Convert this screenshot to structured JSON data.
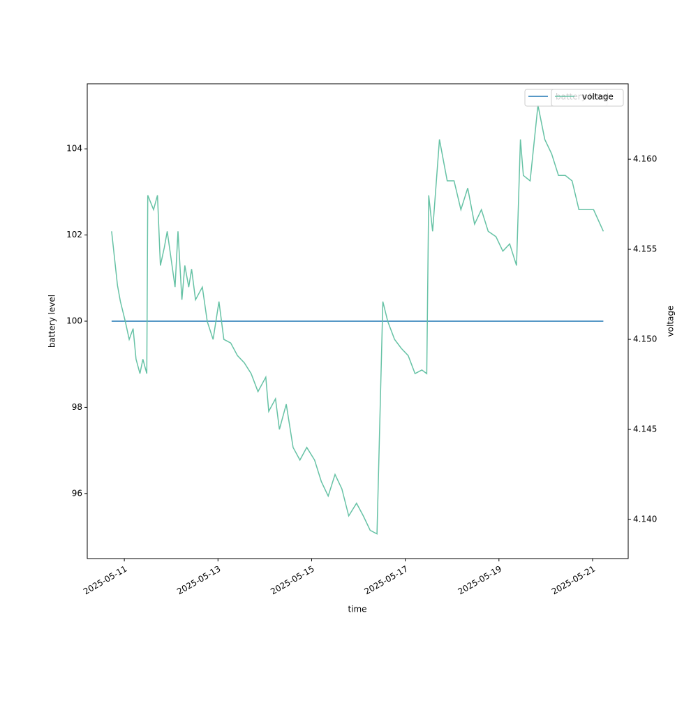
{
  "chart_data": {
    "type": "line",
    "xlabel": "time",
    "ylabel": "battery level",
    "y2label": "voltage",
    "xlim": [
      "2025-05-10T05:00",
      "2025-05-21T18:15"
    ],
    "xticks": [
      "2025-05-11",
      "2025-05-13",
      "2025-05-15",
      "2025-05-17",
      "2025-05-19",
      "2025-05-21"
    ],
    "ylim": [
      94.49,
      105.51
    ],
    "yticks": [
      96,
      98,
      100,
      102,
      104
    ],
    "y2lim": [
      4.13783,
      4.16419
    ],
    "y2ticks": [
      {
        "value": 4.14,
        "label": "4.140"
      },
      {
        "value": 4.145,
        "label": "4.145"
      },
      {
        "value": 4.15,
        "label": "4.150"
      },
      {
        "value": 4.155,
        "label": "4.155"
      },
      {
        "value": 4.16,
        "label": "4.160"
      }
    ],
    "series": [
      {
        "name": "battery level",
        "color": "#1f77b4",
        "x": [
          "2025-05-10T17:30",
          "2025-05-21T05:30"
        ],
        "values": [
          100,
          100
        ]
      },
      {
        "name": "voltage",
        "color": "#66c2a5",
        "axis": "y2",
        "x": [
          "2025-05-10T17:30",
          "2025-05-10T18:30",
          "2025-05-10T20:30",
          "2025-05-10T22:00",
          "2025-05-11T00:30",
          "2025-05-11T02:30",
          "2025-05-11T04:30",
          "2025-05-11T06:00",
          "2025-05-11T08:00",
          "2025-05-11T09:30",
          "2025-05-11T11:30",
          "2025-05-11T12:00",
          "2025-05-11T15:00",
          "2025-05-11T17:00",
          "2025-05-11T18:30",
          "2025-05-11T20:30",
          "2025-05-11T22:00",
          "2025-05-12T02:00",
          "2025-05-12T03:30",
          "2025-05-12T05:30",
          "2025-05-12T07:00",
          "2025-05-12T09:00",
          "2025-05-12T10:30",
          "2025-05-12T12:30",
          "2025-05-12T16:00",
          "2025-05-12T18:30",
          "2025-05-12T21:30",
          "2025-05-13T00:30",
          "2025-05-13T03:00",
          "2025-05-13T06:30",
          "2025-05-13T10:00",
          "2025-05-13T13:30",
          "2025-05-13T17:00",
          "2025-05-13T20:30",
          "2025-05-14T00:30",
          "2025-05-14T02:00",
          "2025-05-14T05:30",
          "2025-05-14T07:30",
          "2025-05-14T11:00",
          "2025-05-14T14:30",
          "2025-05-14T18:00",
          "2025-05-14T21:30",
          "2025-05-15T01:30",
          "2025-05-15T05:00",
          "2025-05-15T08:30",
          "2025-05-15T12:00",
          "2025-05-15T15:30",
          "2025-05-15T19:00",
          "2025-05-15T23:00",
          "2025-05-16T02:30",
          "2025-05-16T06:00",
          "2025-05-16T09:30",
          "2025-05-16T12:30",
          "2025-05-16T15:00",
          "2025-05-16T18:30",
          "2025-05-16T22:00",
          "2025-05-17T01:30",
          "2025-05-17T05:00",
          "2025-05-17T08:30",
          "2025-05-17T11:00",
          "2025-05-17T12:00",
          "2025-05-17T14:00",
          "2025-05-17T17:30",
          "2025-05-17T21:30",
          "2025-05-18T01:00",
          "2025-05-18T04:30",
          "2025-05-18T08:00",
          "2025-05-18T11:30",
          "2025-05-18T15:00",
          "2025-05-18T18:30",
          "2025-05-18T22:30",
          "2025-05-19T02:00",
          "2025-05-19T05:30",
          "2025-05-19T09:00",
          "2025-05-19T11:00",
          "2025-05-19T12:30",
          "2025-05-19T16:00",
          "2025-05-19T20:00",
          "2025-05-19T23:30",
          "2025-05-20T03:00",
          "2025-05-20T06:30",
          "2025-05-20T10:00",
          "2025-05-20T13:30",
          "2025-05-20T17:00",
          "2025-05-20T21:00",
          "2025-05-21T00:30",
          "2025-05-21T05:30"
        ],
        "values": [
          4.156,
          4.155,
          4.153,
          4.1521,
          4.151,
          4.15,
          4.1506,
          4.1489,
          4.1481,
          4.1489,
          4.1481,
          4.158,
          4.1572,
          4.158,
          4.1541,
          4.1551,
          4.156,
          4.1529,
          4.156,
          4.1522,
          4.1541,
          4.1529,
          4.1539,
          4.1522,
          4.1529,
          4.151,
          4.15,
          4.1521,
          4.15,
          4.1498,
          4.1491,
          4.1487,
          4.1481,
          4.1471,
          4.1479,
          4.146,
          4.1467,
          4.145,
          4.1464,
          4.144,
          4.1433,
          4.144,
          4.1433,
          4.1421,
          4.1413,
          4.1425,
          4.1417,
          4.1402,
          4.1409,
          4.1402,
          4.1394,
          4.1392,
          4.1521,
          4.151,
          4.15,
          4.1495,
          4.1491,
          4.1481,
          4.1483,
          4.1481,
          4.158,
          4.156,
          4.1611,
          4.1588,
          4.1588,
          4.1572,
          4.1584,
          4.1564,
          4.1572,
          4.156,
          4.1557,
          4.1549,
          4.1553,
          4.1541,
          4.1611,
          4.1591,
          4.1588,
          4.163,
          4.1611,
          4.1603,
          4.1591,
          4.1591,
          4.1588,
          4.1572,
          4.1572,
          4.1572,
          4.156
        ]
      }
    ]
  }
}
